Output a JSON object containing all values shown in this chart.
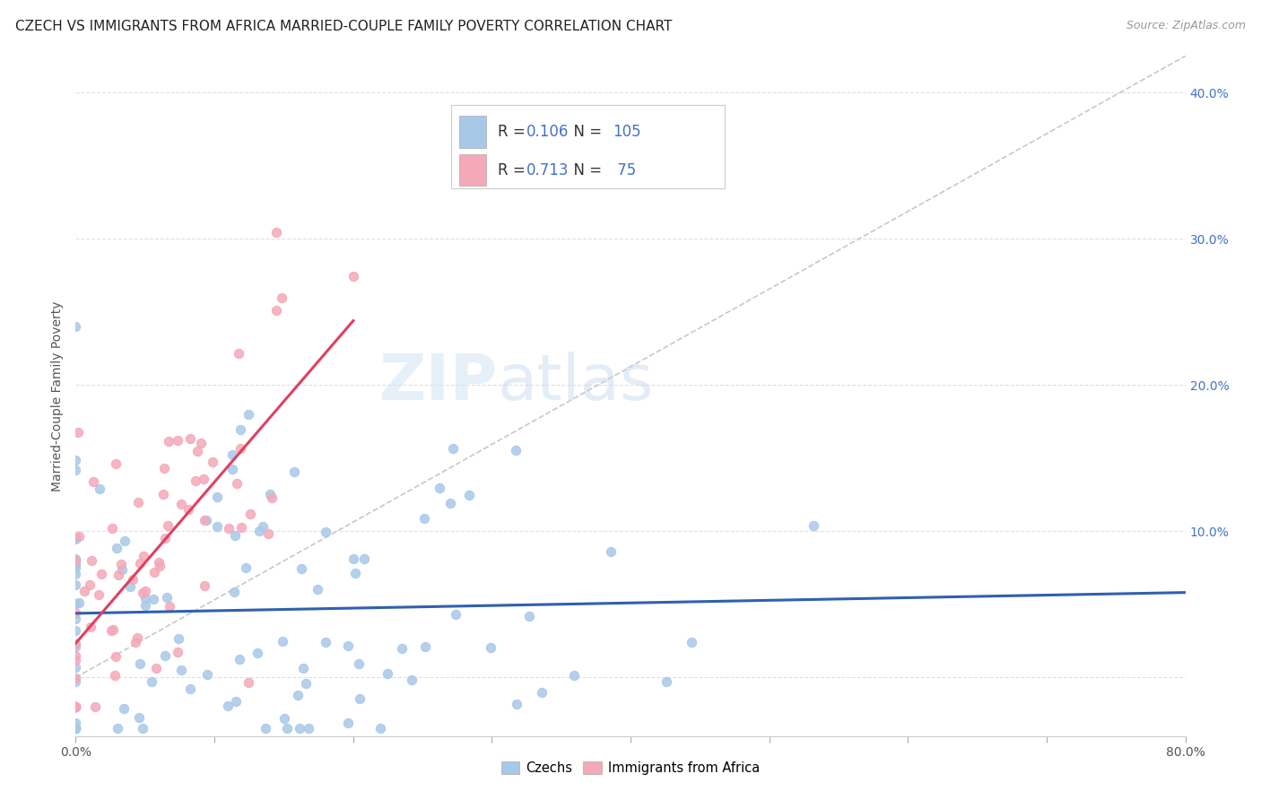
{
  "title": "CZECH VS IMMIGRANTS FROM AFRICA MARRIED-COUPLE FAMILY POVERTY CORRELATION CHART",
  "source": "Source: ZipAtlas.com",
  "ylabel": "Married-Couple Family Poverty",
  "xmin": 0.0,
  "xmax": 0.8,
  "ymin": -0.04,
  "ymax": 0.425,
  "czechs_color": "#a8c8e8",
  "africa_color": "#f4a8b8",
  "czechs_line_color": "#3060b0",
  "africa_line_color": "#e04060",
  "diagonal_color": "#c8c8c8",
  "background_color": "#ffffff",
  "grid_color": "#e0e0e0",
  "legend_czech_color": "#a8c8e8",
  "legend_africa_color": "#f4a8b8",
  "right_tick_color": "#4472c4",
  "title_fontsize": 11,
  "axis_label_fontsize": 10,
  "tick_fontsize": 10,
  "legend_fontsize": 12,
  "source_fontsize": 9,
  "czechs_R": 0.106,
  "czechs_N": 105,
  "africa_R": 0.713,
  "africa_N": 75,
  "seed": 12
}
